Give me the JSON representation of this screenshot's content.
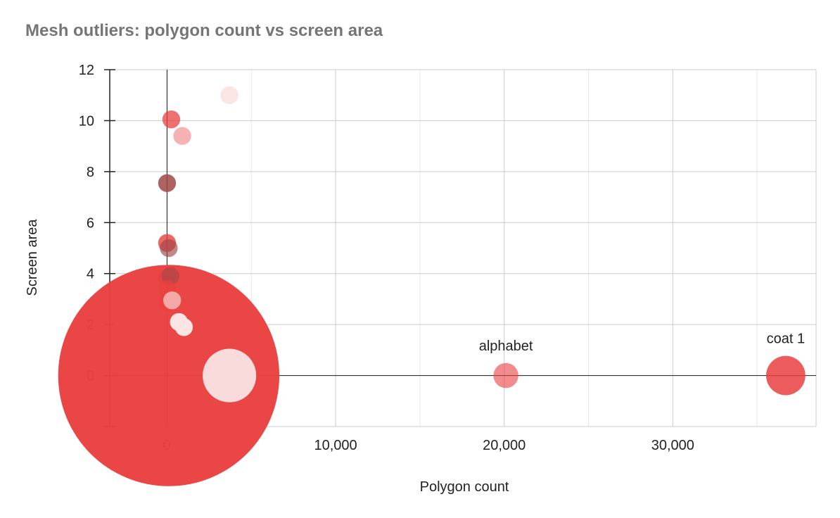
{
  "chart_data": {
    "type": "scatter",
    "title": "Mesh outliers: polygon count vs screen area",
    "xlabel": "Polygon count",
    "ylabel": "Screen area",
    "xlim": [
      -3400,
      38500
    ],
    "ylim": [
      -2,
      12
    ],
    "x_ticks": [
      {
        "value": 0,
        "label": "0"
      },
      {
        "value": 10000,
        "label": "10,000"
      },
      {
        "value": 20000,
        "label": "20,000"
      },
      {
        "value": 30000,
        "label": "30,000"
      }
    ],
    "y_ticks": [
      {
        "value": 0,
        "label": "0"
      },
      {
        "value": 2,
        "label": "2"
      },
      {
        "value": 4,
        "label": "4"
      },
      {
        "value": 6,
        "label": "6"
      },
      {
        "value": 8,
        "label": "8"
      },
      {
        "value": 10,
        "label": "10"
      },
      {
        "value": 12,
        "label": "12"
      }
    ],
    "grid": true,
    "legend": "none",
    "colors": {
      "base": "#e94040",
      "dark": "#a04848",
      "light": "#f4b2b2",
      "pale": "#fbe4e4"
    },
    "points": [
      {
        "x": 100,
        "y": 0,
        "size": 62,
        "color": "#e94040",
        "opacity": 0.97,
        "label": ""
      },
      {
        "x": 3700,
        "y": 0,
        "size": 15,
        "color": "#fbe4e4",
        "opacity": 0.95,
        "label": ""
      },
      {
        "x": 20100,
        "y": 0,
        "size": 7,
        "color": "#e94040",
        "opacity": 0.6,
        "label": "alphabet"
      },
      {
        "x": 36700,
        "y": 0,
        "size": 11,
        "color": "#e94040",
        "opacity": 0.85,
        "label": "coat 1"
      },
      {
        "x": 3700,
        "y": 11,
        "size": 5,
        "color": "#fbe4e4",
        "opacity": 1,
        "label": ""
      },
      {
        "x": 250,
        "y": 10.05,
        "size": 5,
        "color": "#e94040",
        "opacity": 0.75,
        "label": ""
      },
      {
        "x": 900,
        "y": 9.4,
        "size": 5,
        "color": "#f4b2b2",
        "opacity": 1,
        "label": ""
      },
      {
        "x": 0,
        "y": 7.55,
        "size": 5,
        "color": "#a04848",
        "opacity": 0.85,
        "label": ""
      },
      {
        "x": 0,
        "y": 5.2,
        "size": 5,
        "color": "#e94040",
        "opacity": 0.8,
        "label": ""
      },
      {
        "x": 100,
        "y": 5.0,
        "size": 5,
        "color": "#a04848",
        "opacity": 0.65,
        "label": ""
      },
      {
        "x": 0,
        "y": 3.85,
        "size": 5,
        "color": "#e94040",
        "opacity": 0.8,
        "label": ""
      },
      {
        "x": 200,
        "y": 3.9,
        "size": 5,
        "color": "#a04848",
        "opacity": 0.6,
        "label": ""
      },
      {
        "x": 0,
        "y": 3.4,
        "size": 5,
        "color": "#e94040",
        "opacity": 0.75,
        "label": ""
      },
      {
        "x": 0,
        "y": 2.85,
        "size": 5,
        "color": "#e94040",
        "opacity": 0.7,
        "label": ""
      },
      {
        "x": 300,
        "y": 2.95,
        "size": 5,
        "color": "#f4b2b2",
        "opacity": 0.9,
        "label": ""
      },
      {
        "x": 700,
        "y": 2.1,
        "size": 5,
        "color": "#fbe4e4",
        "opacity": 1,
        "label": ""
      },
      {
        "x": 1000,
        "y": 1.9,
        "size": 5,
        "color": "#fbe4e4",
        "opacity": 1,
        "label": ""
      }
    ]
  }
}
